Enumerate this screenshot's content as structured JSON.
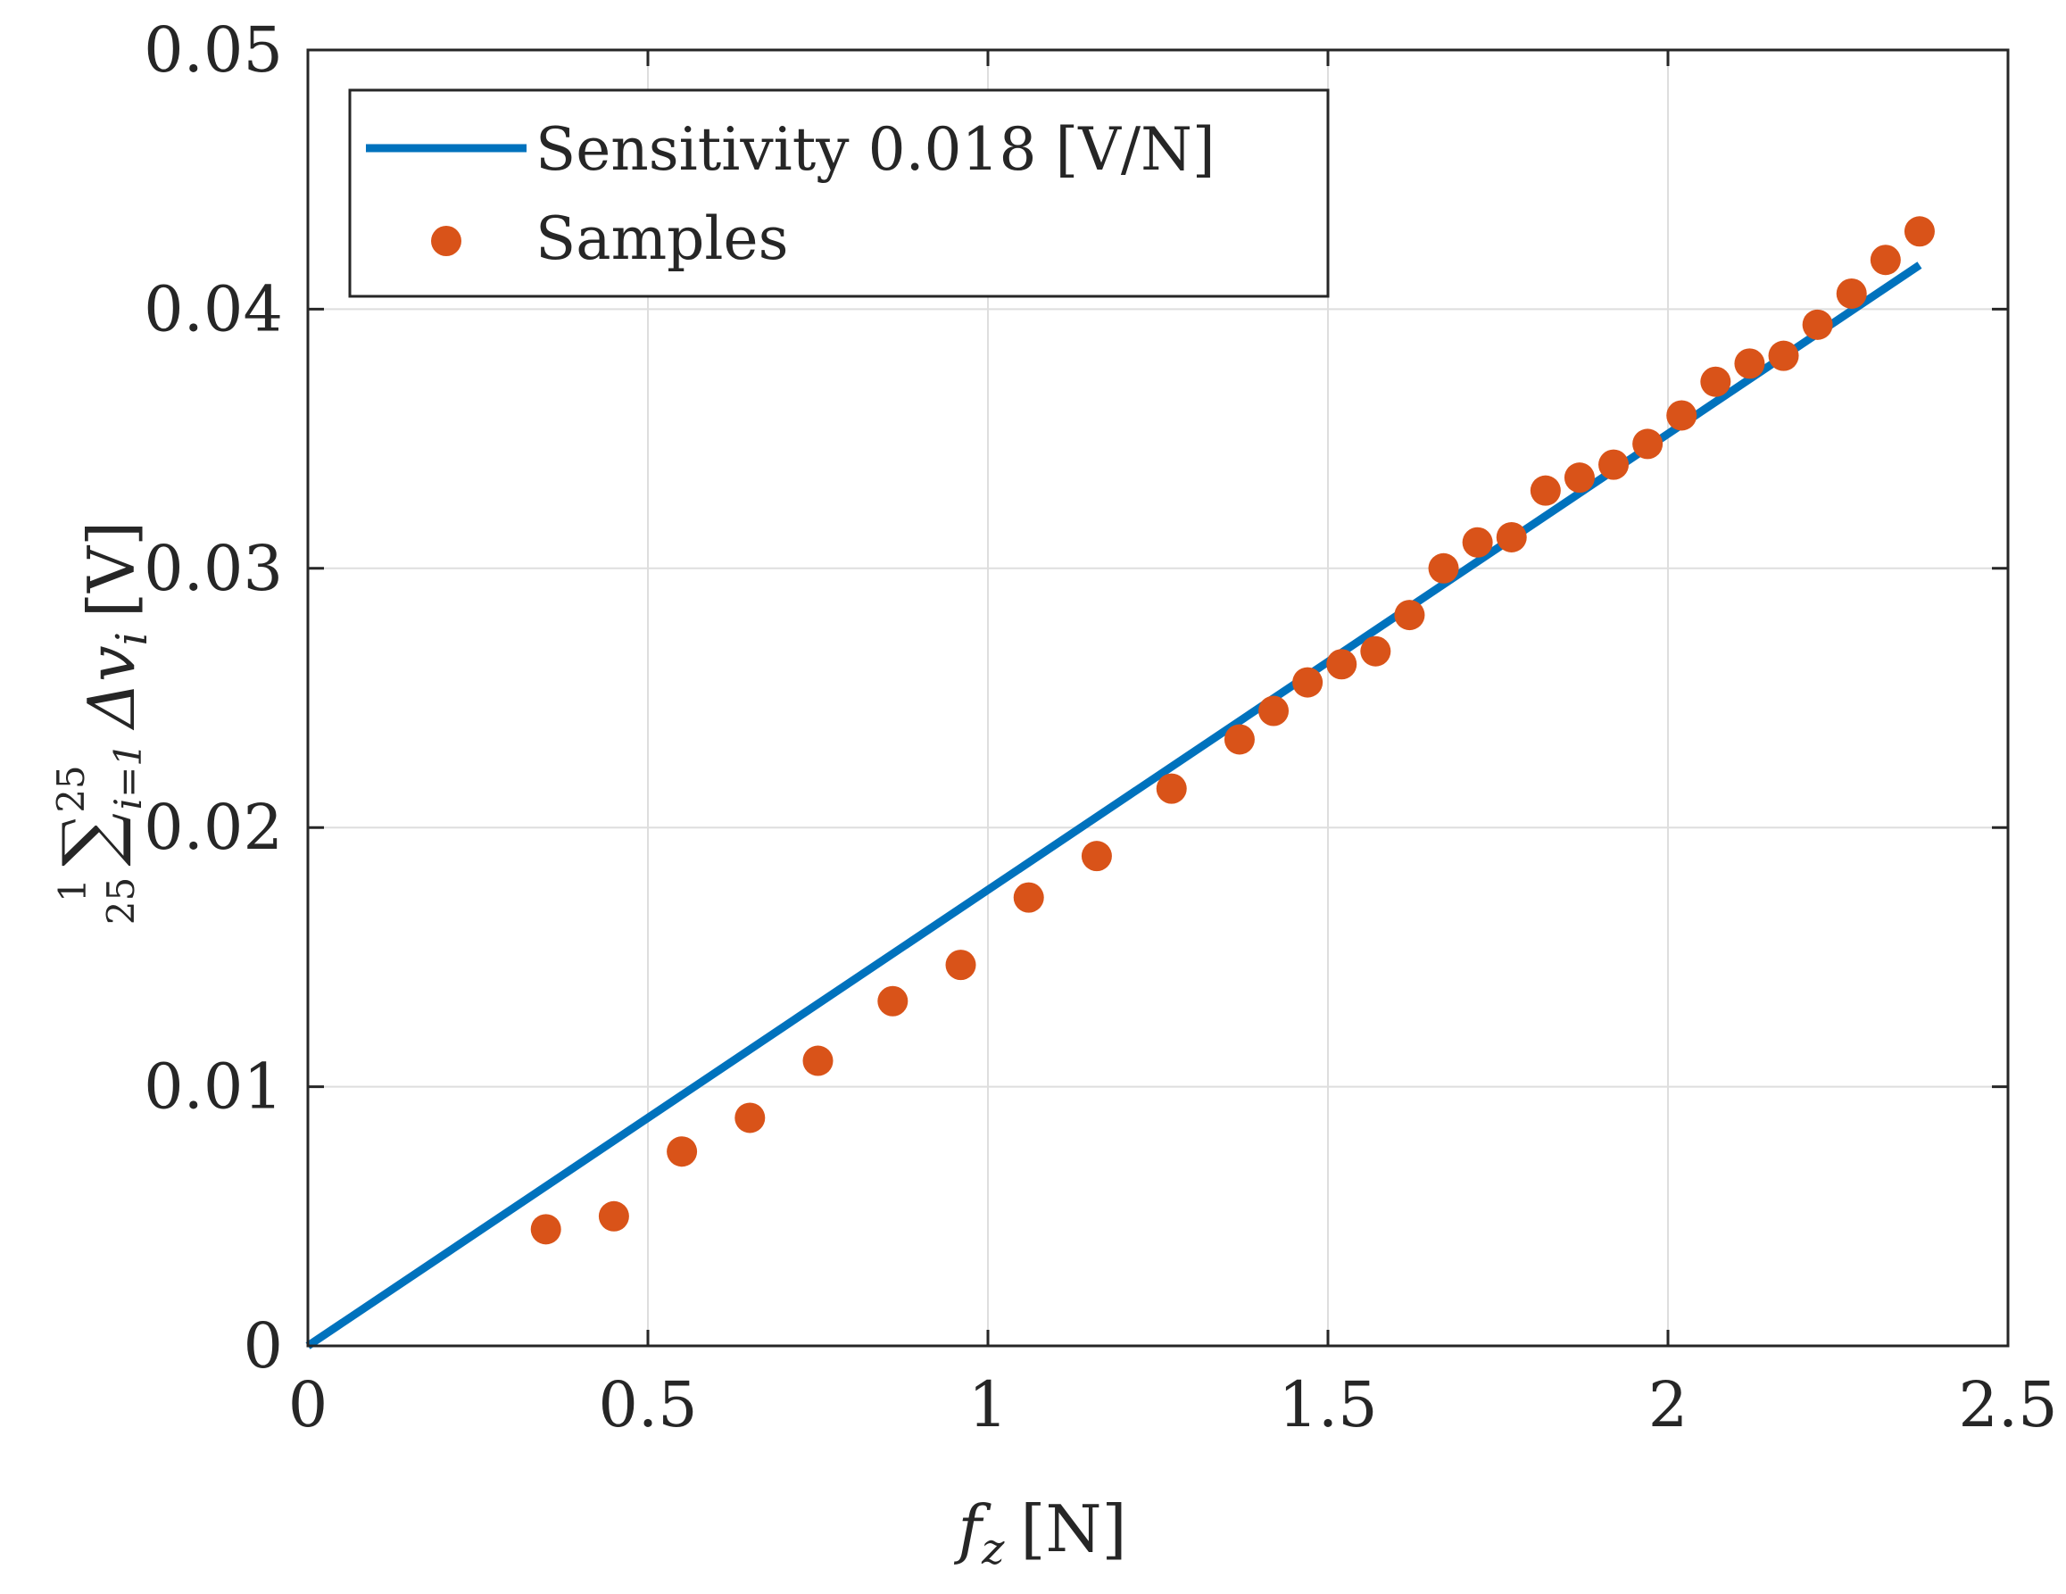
{
  "chart_data": {
    "type": "scatter",
    "title": "",
    "xlabel": "f_z [N]",
    "xlabel_parts": {
      "var": "f",
      "sub": "z",
      "unit": "[N]"
    },
    "ylabel": "1/25 Σ_{i=1}^{25} Δv_i [V]",
    "ylabel_parts": {
      "frac_num": "1",
      "frac_den": "25",
      "sum": "∑",
      "sum_sup": "25",
      "sum_sub": "i=1",
      "delta": "Δv",
      "sub": "i",
      "unit": "[V]"
    },
    "xlim": [
      0,
      2.5
    ],
    "ylim": [
      0,
      0.05
    ],
    "xticks": [
      0,
      0.5,
      1,
      1.5,
      2,
      2.5
    ],
    "xtick_labels": [
      "0",
      "0.5",
      "1",
      "1.5",
      "2",
      "2.5"
    ],
    "yticks": [
      0,
      0.01,
      0.02,
      0.03,
      0.04,
      0.05
    ],
    "ytick_labels": [
      "0",
      "0.01",
      "0.02",
      "0.03",
      "0.04",
      "0.05"
    ],
    "grid": true,
    "legend_position": "top-left",
    "series": [
      {
        "name": "Sensitivity 0.018 [V/N]",
        "kind": "line",
        "color": "#0072BD",
        "x": [
          0,
          2.37
        ],
        "y": [
          0,
          0.0417
        ]
      },
      {
        "name": "Samples",
        "kind": "scatter",
        "color": "#D95319",
        "x": [
          0.35,
          0.45,
          0.55,
          0.65,
          0.75,
          0.86,
          0.96,
          1.06,
          1.16,
          1.27,
          1.37,
          1.42,
          1.47,
          1.52,
          1.57,
          1.62,
          1.67,
          1.72,
          1.77,
          1.82,
          1.87,
          1.92,
          1.97,
          2.02,
          2.07,
          2.12,
          2.17,
          2.22,
          2.27,
          2.32,
          2.37
        ],
        "y": [
          0.0045,
          0.005,
          0.0075,
          0.0088,
          0.011,
          0.0133,
          0.0147,
          0.0173,
          0.0189,
          0.0215,
          0.0234,
          0.0245,
          0.0256,
          0.0263,
          0.0268,
          0.0282,
          0.03,
          0.031,
          0.0312,
          0.033,
          0.0335,
          0.034,
          0.0348,
          0.0359,
          0.0372,
          0.0379,
          0.0382,
          0.0394,
          0.0406,
          0.0419,
          0.043
        ]
      }
    ]
  }
}
